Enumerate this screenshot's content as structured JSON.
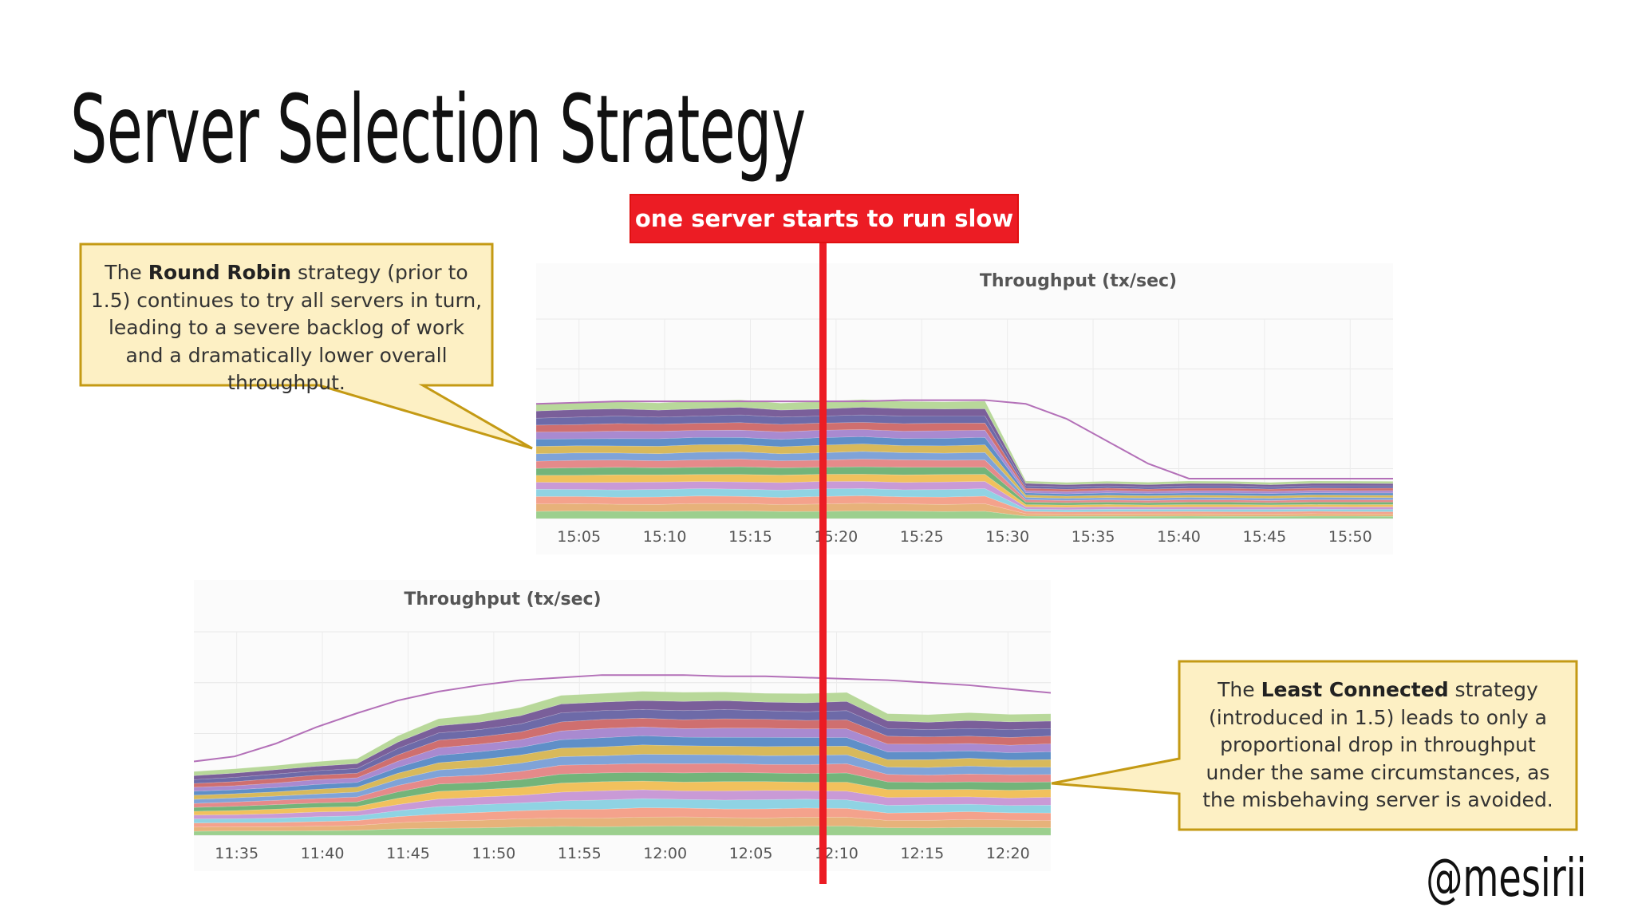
{
  "slide": {
    "title": "Server Selection Strategy",
    "banner": "one server starts to run slow",
    "handle": "@mesirii"
  },
  "callouts": {
    "round_robin": {
      "before": "The ",
      "bold": "Round Robin",
      "after": " strategy (prior to 1.5) continues to try all servers in turn, leading to a severe backlog of work and a dramatically lower overall throughput."
    },
    "least_connected": {
      "before": "The ",
      "bold": "Least Connected",
      "after": " strategy (introduced in 1.5) leads to only a proportional drop in throughput under the same circumstances, as the misbehaving server is avoided."
    }
  },
  "colors": {
    "banner": "#ec1c24",
    "callout_fill": "#fdf0c4",
    "callout_border": "#c49a14",
    "trend_line": "#b370b8"
  },
  "chart_data": [
    {
      "type": "area",
      "title": "Throughput (tx/sec)",
      "xlabel": "",
      "ylabel": "",
      "grid": true,
      "x_ticks": [
        "15:05",
        "15:10",
        "15:15",
        "15:20",
        "15:25",
        "15:30",
        "15:35",
        "15:40",
        "15:45",
        "15:50"
      ],
      "x": [
        0,
        1,
        2,
        3,
        4,
        5,
        6,
        7,
        8,
        9,
        10,
        11,
        12,
        13,
        14,
        15,
        16,
        17,
        18,
        19,
        20,
        21
      ],
      "stack_total": [
        92,
        93,
        94,
        93,
        94,
        95,
        93,
        94,
        95,
        94,
        94,
        94,
        30,
        29,
        30,
        29,
        30,
        30,
        29,
        30,
        30,
        30
      ],
      "trend": [
        92,
        93,
        94,
        94,
        94,
        94,
        94,
        94,
        94,
        95,
        95,
        95,
        92,
        80,
        62,
        44,
        32,
        32,
        32,
        32,
        32,
        32
      ],
      "series_count": 16,
      "ylim": [
        0,
        160
      ]
    },
    {
      "type": "area",
      "title": "Throughput (tx/sec)",
      "xlabel": "",
      "ylabel": "",
      "grid": true,
      "x_ticks": [
        "11:35",
        "11:40",
        "11:45",
        "11:50",
        "11:55",
        "12:00",
        "12:05",
        "12:10",
        "12:15",
        "12:20"
      ],
      "x": [
        0,
        1,
        2,
        3,
        4,
        5,
        6,
        7,
        8,
        9,
        10,
        11,
        12,
        13,
        14,
        15,
        16,
        17,
        18,
        19,
        20,
        21
      ],
      "stack_total": [
        50,
        52,
        55,
        58,
        60,
        78,
        92,
        95,
        100,
        110,
        112,
        113,
        112,
        113,
        112,
        111,
        112,
        96,
        95,
        96,
        95,
        96
      ],
      "trend": [
        58,
        62,
        72,
        85,
        96,
        106,
        113,
        118,
        122,
        124,
        126,
        126,
        126,
        125,
        125,
        124,
        123,
        122,
        120,
        118,
        115,
        112
      ],
      "series_count": 16,
      "ylim": [
        0,
        160
      ]
    }
  ]
}
